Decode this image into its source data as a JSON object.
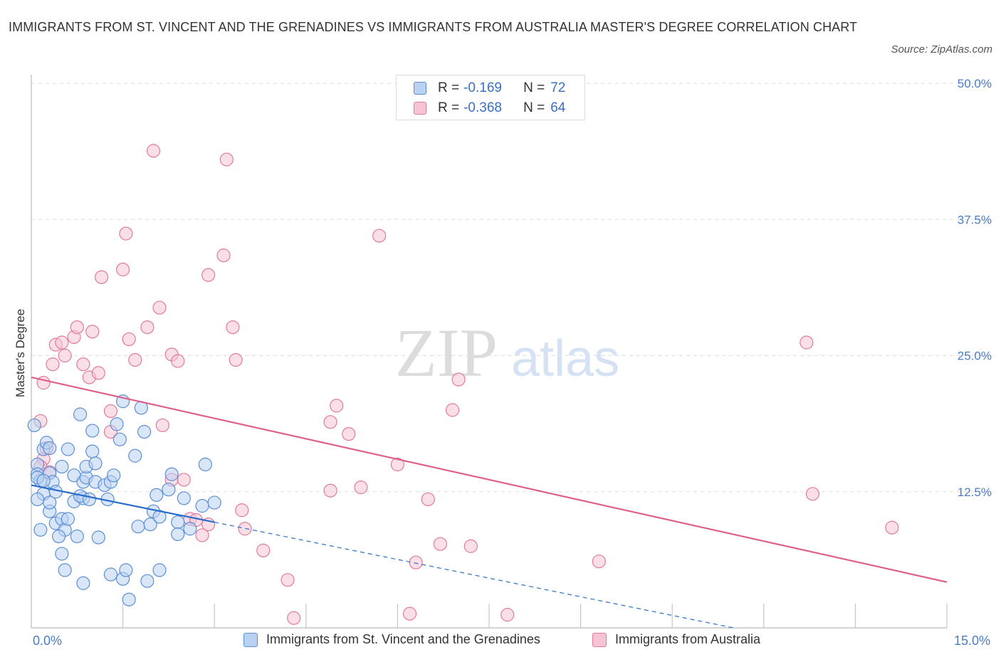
{
  "title": "IMMIGRANTS FROM ST. VINCENT AND THE GRENADINES VS IMMIGRANTS FROM AUSTRALIA MASTER'S DEGREE CORRELATION CHART",
  "source": "Source: ZipAtlas.com",
  "watermark": {
    "zip": "ZIP",
    "atlas": "atlas"
  },
  "colors": {
    "blue": "#5b8fd6",
    "blue_fill": "#b9d1f3",
    "pink": "#e27a9e",
    "pink_fill": "#f6c4d4",
    "blue_line": "#2a6dc9",
    "pink_line": "#e0608c",
    "tick_text": "#4a7cc7"
  },
  "legend": {
    "rows": [
      {
        "r_label": "R =",
        "r_value": "-0.169",
        "n_label": "N =",
        "n_value": "72"
      },
      {
        "r_label": "R =",
        "r_value": "-0.368",
        "n_label": "N =",
        "n_value": "64"
      }
    ]
  },
  "chart_data": {
    "type": "scatter",
    "ylabel": "Master's Degree",
    "x_tick_labels": [
      "0.0%",
      "15.0%"
    ],
    "y_tick_labels": [
      "12.5%",
      "25.0%",
      "37.5%",
      "50.0%"
    ],
    "xlim": [
      0,
      15
    ],
    "ylim": [
      0,
      50
    ],
    "grid": true,
    "legend_position": "top-center",
    "series": [
      {
        "name": "Immigrants from St. Vincent and the Grenadines",
        "color": "blue",
        "trend": {
          "x": [
            0,
            3.0
          ],
          "y": [
            13.1,
            9.7
          ],
          "dashed_extension": {
            "x": [
              3.0,
              11.5
            ],
            "y": [
              9.7,
              0
            ]
          }
        },
        "points": [
          [
            0.05,
            18.6
          ],
          [
            0.1,
            15
          ],
          [
            0.1,
            14.1
          ],
          [
            0.15,
            13.5
          ],
          [
            0.2,
            12.3
          ],
          [
            0.1,
            11.8
          ],
          [
            0.2,
            16.4
          ],
          [
            0.25,
            17
          ],
          [
            0.3,
            16.5
          ],
          [
            0.3,
            14.2
          ],
          [
            0.35,
            13.4
          ],
          [
            0.4,
            12.5
          ],
          [
            0.3,
            10.7
          ],
          [
            0.4,
            9.6
          ],
          [
            0.5,
            10
          ],
          [
            0.55,
            9.0
          ],
          [
            0.45,
            8.4
          ],
          [
            0.5,
            6.8
          ],
          [
            0.55,
            5.3
          ],
          [
            0.5,
            14.8
          ],
          [
            0.6,
            16.4
          ],
          [
            0.7,
            11.6
          ],
          [
            0.75,
            8.4
          ],
          [
            0.7,
            14.0
          ],
          [
            0.85,
            11.9
          ],
          [
            0.8,
            12.1
          ],
          [
            0.85,
            13.4
          ],
          [
            0.9,
            13.8
          ],
          [
            0.9,
            14.8
          ],
          [
            0.6,
            10.0
          ],
          [
            0.95,
            11.8
          ],
          [
            1.0,
            16.2
          ],
          [
            1.05,
            15.1
          ],
          [
            1.0,
            18.1
          ],
          [
            1.05,
            13.4
          ],
          [
            1.1,
            8.3
          ],
          [
            1.2,
            13.1
          ],
          [
            1.3,
            13.4
          ],
          [
            1.35,
            14.0
          ],
          [
            1.25,
            11.8
          ],
          [
            0.85,
            4.1
          ],
          [
            1.3,
            4.9
          ],
          [
            0.8,
            19.6
          ],
          [
            1.4,
            18.7
          ],
          [
            1.45,
            17.3
          ],
          [
            1.5,
            20.8
          ],
          [
            1.5,
            4.5
          ],
          [
            1.55,
            5.3
          ],
          [
            1.6,
            2.6
          ],
          [
            1.7,
            15.8
          ],
          [
            1.75,
            9.3
          ],
          [
            1.8,
            20.2
          ],
          [
            1.85,
            18.0
          ],
          [
            1.9,
            4.3
          ],
          [
            2.0,
            10.7
          ],
          [
            2.1,
            5.3
          ],
          [
            2.05,
            12.2
          ],
          [
            1.95,
            9.5
          ],
          [
            2.1,
            10.2
          ],
          [
            2.25,
            12.7
          ],
          [
            2.4,
            9.7
          ],
          [
            2.4,
            8.6
          ],
          [
            2.3,
            14.1
          ],
          [
            2.5,
            11.9
          ],
          [
            2.6,
            9.1
          ],
          [
            3.0,
            11.5
          ],
          [
            2.85,
            15.0
          ],
          [
            2.8,
            11.2
          ],
          [
            0.1,
            13.8
          ],
          [
            0.2,
            13.5
          ],
          [
            0.3,
            11.5
          ],
          [
            0.15,
            9.0
          ]
        ]
      },
      {
        "name": "Immigrants from Australia",
        "color": "pink",
        "trend": {
          "x": [
            0,
            15.0
          ],
          "y": [
            23.0,
            4.2
          ]
        },
        "points": [
          [
            0.15,
            19.0
          ],
          [
            0.2,
            15.5
          ],
          [
            0.15,
            14.8
          ],
          [
            0.25,
            16.5
          ],
          [
            0.3,
            14.3
          ],
          [
            0.2,
            22.5
          ],
          [
            0.35,
            24.2
          ],
          [
            0.4,
            26.0
          ],
          [
            0.5,
            26.2
          ],
          [
            0.55,
            25.0
          ],
          [
            0.7,
            26.7
          ],
          [
            0.75,
            27.6
          ],
          [
            0.85,
            24.2
          ],
          [
            0.95,
            23.0
          ],
          [
            1.0,
            27.2
          ],
          [
            1.1,
            23.4
          ],
          [
            1.15,
            32.2
          ],
          [
            1.3,
            18.0
          ],
          [
            1.3,
            19.9
          ],
          [
            1.5,
            32.9
          ],
          [
            1.55,
            36.2
          ],
          [
            1.6,
            26.5
          ],
          [
            1.7,
            24.6
          ],
          [
            1.9,
            27.6
          ],
          [
            2.0,
            43.8
          ],
          [
            2.1,
            29.4
          ],
          [
            2.15,
            18.6
          ],
          [
            2.3,
            25.1
          ],
          [
            2.4,
            24.5
          ],
          [
            2.3,
            13.6
          ],
          [
            2.5,
            13.6
          ],
          [
            2.6,
            10.0
          ],
          [
            2.7,
            9.9
          ],
          [
            2.8,
            8.5
          ],
          [
            2.9,
            9.5
          ],
          [
            2.9,
            32.4
          ],
          [
            3.2,
            43.0
          ],
          [
            3.15,
            34.2
          ],
          [
            3.3,
            27.6
          ],
          [
            3.35,
            24.6
          ],
          [
            3.45,
            10.8
          ],
          [
            3.5,
            9.1
          ],
          [
            3.8,
            7.1
          ],
          [
            4.2,
            4.4
          ],
          [
            4.3,
            0.9
          ],
          [
            4.9,
            18.9
          ],
          [
            5.0,
            20.4
          ],
          [
            4.9,
            12.6
          ],
          [
            5.2,
            17.8
          ],
          [
            5.4,
            12.9
          ],
          [
            5.7,
            36.0
          ],
          [
            6.0,
            15.0
          ],
          [
            6.2,
            1.3
          ],
          [
            6.3,
            6.0
          ],
          [
            6.5,
            11.8
          ],
          [
            6.7,
            7.7
          ],
          [
            6.9,
            20.0
          ],
          [
            7.0,
            22.8
          ],
          [
            7.2,
            7.5
          ],
          [
            7.8,
            1.2
          ],
          [
            9.3,
            6.1
          ],
          [
            12.7,
            26.2
          ],
          [
            12.8,
            12.3
          ],
          [
            14.1,
            9.2
          ]
        ]
      }
    ]
  }
}
